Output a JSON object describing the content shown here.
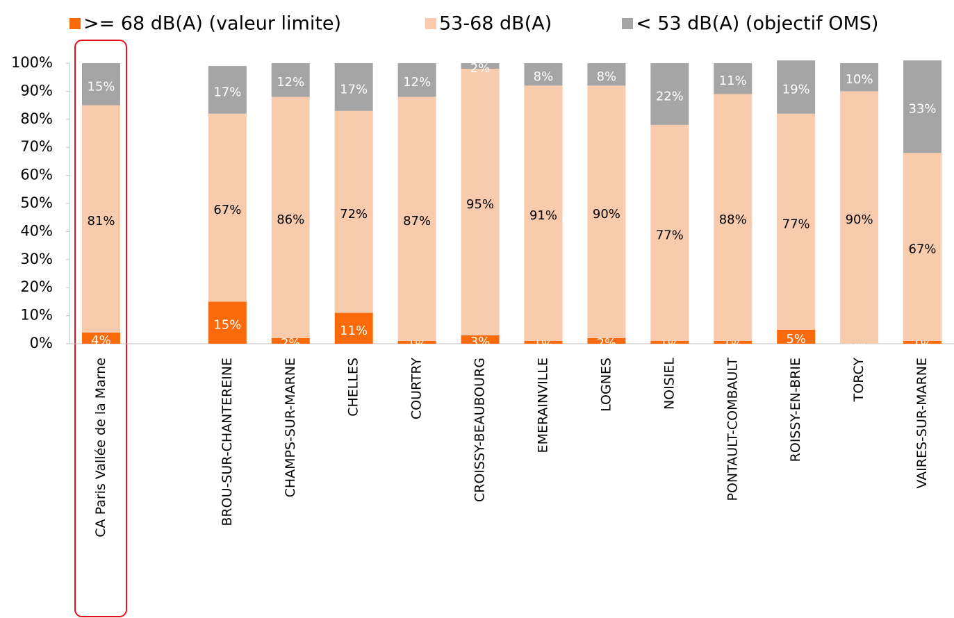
{
  "chart_data": {
    "type": "stacked_bar",
    "categories": [
      "CA Paris Vallée de la Marne",
      null,
      "BROU-SUR-CHANTEREINE",
      "CHAMPS-SUR-MARNE",
      "CHELLES",
      "COURTRY",
      "CROISSY-BEAUBOURG",
      "EMERAINVILLE",
      "LOGNES",
      "NOISIEL",
      "PONTAULT-COMBAULT",
      "ROISSY-EN-BRIE",
      "TORCY",
      "VAIRES-SUR-MARNE"
    ],
    "series": [
      {
        "name": ">= 68 dB(A) (valeur limite)",
        "color": "#fa6a0a",
        "values": [
          4,
          null,
          15,
          2,
          11,
          1,
          3,
          1,
          2,
          1,
          1,
          5,
          0,
          1
        ],
        "value_labels": [
          "4%",
          null,
          "15%",
          "2%",
          "11%",
          "1%",
          "3%",
          "1%",
          "2%",
          "1%",
          "1%",
          "5%",
          "0%",
          "1%"
        ]
      },
      {
        "name": "53-68 dB(A)",
        "color": "#f8cbad",
        "values": [
          81,
          null,
          67,
          86,
          72,
          87,
          95,
          91,
          90,
          77,
          88,
          77,
          90,
          67
        ],
        "value_labels": [
          "81%",
          null,
          "67%",
          "86%",
          "72%",
          "87%",
          "95%",
          "91%",
          "90%",
          "77%",
          "88%",
          "77%",
          "90%",
          "67%"
        ]
      },
      {
        "name": "< 53 dB(A) (objectif OMS)",
        "color": "#a5a5a5",
        "values": [
          15,
          null,
          17,
          12,
          17,
          12,
          2,
          8,
          8,
          22,
          11,
          19,
          10,
          33
        ],
        "value_labels": [
          "15%",
          null,
          "17%",
          "12%",
          "17%",
          "12%",
          "2%",
          "8%",
          "8%",
          "22%",
          "11%",
          "19%",
          "10%",
          "33%"
        ]
      }
    ],
    "ylim": [
      0,
      100
    ],
    "yticks": [
      {
        "value": 0,
        "label": "0%"
      },
      {
        "value": 10,
        "label": "10%"
      },
      {
        "value": 20,
        "label": "20%"
      },
      {
        "value": 30,
        "label": "30%"
      },
      {
        "value": 40,
        "label": "40%"
      },
      {
        "value": 50,
        "label": "50%"
      },
      {
        "value": 60,
        "label": "60%"
      },
      {
        "value": 70,
        "label": "70%"
      },
      {
        "value": 80,
        "label": "80%"
      },
      {
        "value": 90,
        "label": "90%"
      },
      {
        "value": 100,
        "label": "100%"
      }
    ],
    "legend": "top"
  }
}
